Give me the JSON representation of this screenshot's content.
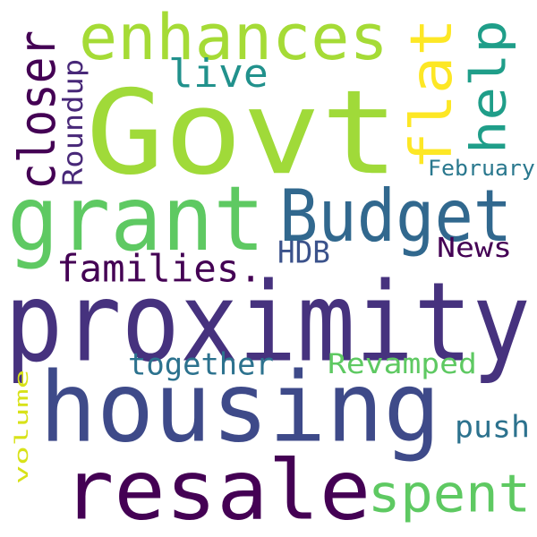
{
  "words": [
    {
      "text": "Govt",
      "color": "#a0da39",
      "rotated": false
    },
    {
      "text": "proximity",
      "color": "#46327e",
      "rotated": false
    },
    {
      "text": "housing",
      "color": "#3e4a89",
      "rotated": false
    },
    {
      "text": "resale",
      "color": "#440154",
      "rotated": false
    },
    {
      "text": "grant",
      "color": "#5ec962",
      "rotated": false
    },
    {
      "text": "Budget",
      "color": "#31688e",
      "rotated": false
    },
    {
      "text": "enhances",
      "color": "#a5db36",
      "rotated": false
    },
    {
      "text": "flat",
      "color": "#fde725",
      "rotated": true
    },
    {
      "text": "help",
      "color": "#1f9e89",
      "rotated": true
    },
    {
      "text": "closer",
      "color": "#440154",
      "rotated": true
    },
    {
      "text": "families.",
      "color": "#440154",
      "rotated": false
    },
    {
      "text": "spent",
      "color": "#5ec962",
      "rotated": false
    },
    {
      "text": "live",
      "color": "#21918c",
      "rotated": false
    },
    {
      "text": "Roundup",
      "color": "#482878",
      "rotated": true
    },
    {
      "text": "HDB",
      "color": "#3b528b",
      "rotated": false
    },
    {
      "text": "News",
      "color": "#440154",
      "rotated": false
    },
    {
      "text": "February",
      "color": "#2a788e",
      "rotated": false
    },
    {
      "text": "together",
      "color": "#2c728e",
      "rotated": false
    },
    {
      "text": "Revamped",
      "color": "#5ec962",
      "rotated": false
    },
    {
      "text": "push",
      "color": "#2c728e",
      "rotated": false
    },
    {
      "text": "volume",
      "color": "#d8e219",
      "rotated": true
    }
  ]
}
